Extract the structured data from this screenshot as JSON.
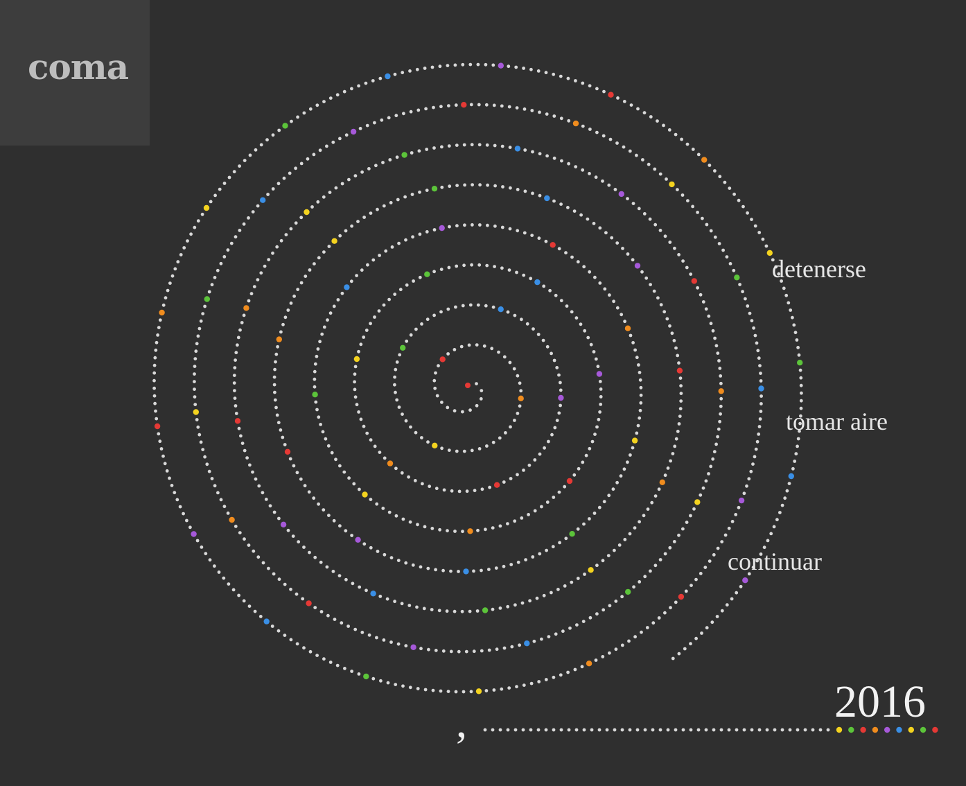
{
  "brand": {
    "name": "coma"
  },
  "labels": {
    "stop": "detenerse",
    "breathe": "tomar aire",
    "continue": "continuar"
  },
  "year": "2016",
  "comma_glyph": ",",
  "colors": {
    "background": "#2f2f2f",
    "logo_background": "#3d3d3d",
    "dot": "#d9d9d9",
    "red": "#e53935",
    "orange": "#f08c1e",
    "yellow": "#f4d31f",
    "green": "#5cc43a",
    "blue": "#3a8fe6",
    "purple": "#a659d9"
  },
  "palette_sequence": [
    "yellow",
    "green",
    "red",
    "orange",
    "purple",
    "blue",
    "yellow",
    "green",
    "red"
  ]
}
